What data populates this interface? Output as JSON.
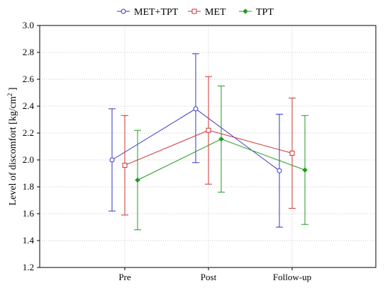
{
  "chart_data": {
    "type": "line",
    "title": "",
    "xlabel": "",
    "ylabel": "Level of discomfort [kg/cm",
    "ylabel_sup": "2",
    "ylabel_close": " ]",
    "categories": [
      "Pre",
      "Post",
      "Follow-up"
    ],
    "ylim": [
      1.2,
      3.0
    ],
    "yticks": [
      "1.2",
      "1.4",
      "1.6",
      "1.8",
      "2.0",
      "2.2",
      "2.4",
      "2.6",
      "2.8",
      "3.0"
    ],
    "grid": true,
    "legend_position": "top-center",
    "series": [
      {
        "name": "MET+TPT",
        "color": "#3333cc",
        "marker": "circle",
        "values": [
          2.0,
          2.38,
          1.92
        ],
        "lower": [
          1.62,
          1.98,
          1.5
        ],
        "upper": [
          2.38,
          2.79,
          2.34
        ]
      },
      {
        "name": "MET",
        "color": "#cc3333",
        "marker": "square",
        "values": [
          1.96,
          2.22,
          2.05
        ],
        "lower": [
          1.59,
          1.82,
          1.64
        ],
        "upper": [
          2.33,
          2.62,
          2.46
        ]
      },
      {
        "name": "TPT",
        "color": "#229922",
        "marker": "diamond",
        "values": [
          1.85,
          2.155,
          1.925
        ],
        "lower": [
          1.48,
          1.76,
          1.52
        ],
        "upper": [
          2.22,
          2.55,
          2.33
        ]
      }
    ]
  }
}
